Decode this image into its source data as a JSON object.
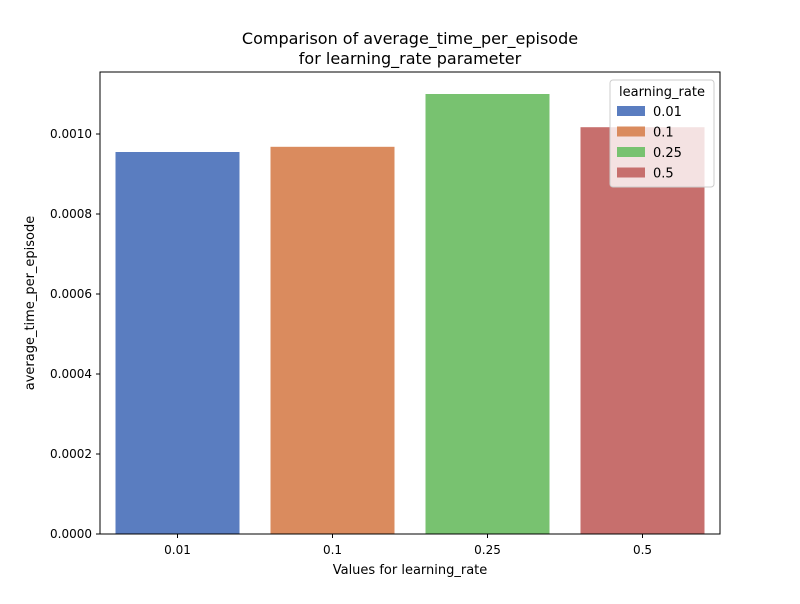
{
  "chart_data": {
    "type": "bar",
    "title_line1": "Comparison of average_time_per_episode",
    "title_line2": "for learning_rate parameter",
    "xlabel": "Values for learning_rate",
    "ylabel": "average_time_per_episode",
    "categories": [
      "0.01",
      "0.1",
      "0.25",
      "0.5"
    ],
    "values": [
      0.000955,
      0.000968,
      0.0011,
      0.001017
    ],
    "colors": [
      "#5a7dc0",
      "#da8b5e",
      "#78c270",
      "#c76f6d"
    ],
    "ylim": [
      0,
      0.001155
    ],
    "yticks": [
      0,
      0.0002,
      0.0004,
      0.0006,
      0.0008,
      0.001
    ],
    "ytick_labels": [
      "0.0000",
      "0.0002",
      "0.0004",
      "0.0006",
      "0.0008",
      "0.0010"
    ],
    "legend": {
      "title": "learning_rate",
      "placement": "top-right",
      "entries": [
        "0.01",
        "0.1",
        "0.25",
        "0.5"
      ]
    },
    "grid": false
  }
}
